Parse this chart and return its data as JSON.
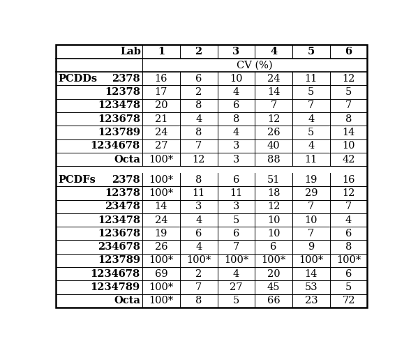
{
  "col_headers": [
    "Lab",
    "1",
    "2",
    "3",
    "4",
    "5",
    "6"
  ],
  "cv_label": "CV (%)",
  "rows": [
    {
      "group": "PCDDs",
      "congener": "2378",
      "vals": [
        "16",
        "6",
        "10",
        "24",
        "11",
        "12"
      ]
    },
    {
      "group": "",
      "congener": "12378",
      "vals": [
        "17",
        "2",
        "4",
        "14",
        "5",
        "5"
      ]
    },
    {
      "group": "",
      "congener": "123478",
      "vals": [
        "20",
        "8",
        "6",
        "7",
        "7",
        "7"
      ]
    },
    {
      "group": "",
      "congener": "123678",
      "vals": [
        "21",
        "4",
        "8",
        "12",
        "4",
        "8"
      ]
    },
    {
      "group": "",
      "congener": "123789",
      "vals": [
        "24",
        "8",
        "4",
        "26",
        "5",
        "14"
      ]
    },
    {
      "group": "",
      "congener": "1234678",
      "vals": [
        "27",
        "7",
        "3",
        "40",
        "4",
        "10"
      ]
    },
    {
      "group": "",
      "congener": "Octa",
      "vals": [
        "100*",
        "12",
        "3",
        "88",
        "11",
        "42"
      ]
    },
    {
      "group": "PCDFs",
      "congener": "2378",
      "vals": [
        "100*",
        "8",
        "6",
        "51",
        "19",
        "16"
      ]
    },
    {
      "group": "",
      "congener": "12378",
      "vals": [
        "100*",
        "11",
        "11",
        "18",
        "29",
        "12"
      ]
    },
    {
      "group": "",
      "congener": "23478",
      "vals": [
        "14",
        "3",
        "3",
        "12",
        "7",
        "7"
      ]
    },
    {
      "group": "",
      "congener": "123478",
      "vals": [
        "24",
        "4",
        "5",
        "10",
        "10",
        "4"
      ]
    },
    {
      "group": "",
      "congener": "123678",
      "vals": [
        "19",
        "6",
        "6",
        "10",
        "7",
        "6"
      ]
    },
    {
      "group": "",
      "congener": "234678",
      "vals": [
        "26",
        "4",
        "7",
        "6",
        "9",
        "8"
      ]
    },
    {
      "group": "",
      "congener": "123789",
      "vals": [
        "100*",
        "100*",
        "100*",
        "100*",
        "100*",
        "100*"
      ]
    },
    {
      "group": "",
      "congener": "1234678",
      "vals": [
        "69",
        "2",
        "4",
        "20",
        "14",
        "6"
      ]
    },
    {
      "group": "",
      "congener": "1234789",
      "vals": [
        "100*",
        "7",
        "27",
        "45",
        "53",
        "5"
      ]
    },
    {
      "group": "",
      "congener": "Octa",
      "vals": [
        "100*",
        "8",
        "5",
        "66",
        "23",
        "72"
      ]
    }
  ],
  "col_widths_rel": [
    2.3,
    1.0,
    1.0,
    1.0,
    1.0,
    1.0,
    1.0
  ],
  "background_color": "#ffffff",
  "font_size": 10.5,
  "outer_lw": 1.8,
  "inner_lw": 0.7,
  "header_lw": 1.2
}
